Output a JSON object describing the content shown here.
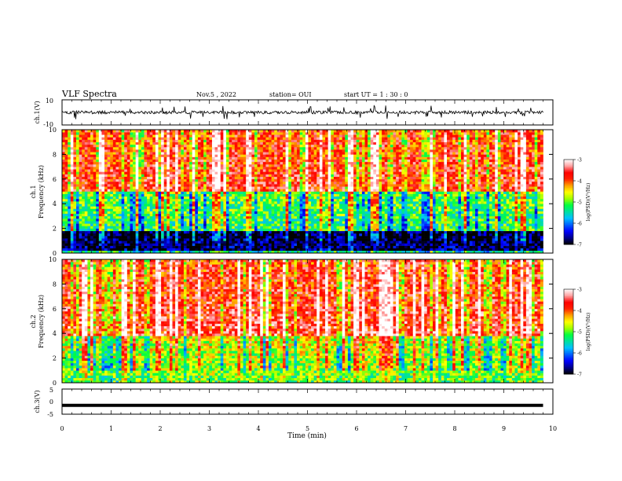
{
  "header": {
    "title": "VLF Spectra",
    "date": "Nov.5 , 2022",
    "station": "station= OUI",
    "start": "start UT = 1 : 30 : 0"
  },
  "chart_data": [
    {
      "type": "line",
      "id": "ch1-waveform",
      "ylabel": "ch.1(V)",
      "ylim": [
        -10,
        10
      ],
      "ytick_labels": [
        "10",
        "-10"
      ],
      "x_range_min": [
        0,
        9.8
      ],
      "description_values": {
        "baseline": 0,
        "typical_noise_amp": 1.2,
        "spike_amp": 5
      }
    },
    {
      "type": "heatmap",
      "id": "ch1-spectrogram",
      "ylabel_line1": "ch.1",
      "ylabel_line2": "Frequency (kHz)",
      "ylim": [
        0,
        10
      ],
      "ytick_labels": [
        "0",
        "2",
        "4",
        "6",
        "8",
        "10"
      ],
      "x_range_min": [
        0,
        9.8
      ],
      "colorbar": {
        "label": "log(PSD)(V²/Hz)",
        "range": [
          -7,
          -3
        ],
        "tick_labels": [
          "-3",
          "-4",
          "-5",
          "-6",
          "-7"
        ]
      },
      "profile": {
        "low_band_khz": [
          0.3,
          1.8
        ],
        "low_level": -6.8,
        "mid_level": -5.4,
        "high_level": -3.7,
        "transition_khz": 5.0
      }
    },
    {
      "type": "heatmap",
      "id": "ch2-spectrogram",
      "ylabel_line1": "ch.2",
      "ylabel_line2": "Frequency (kHz)",
      "ylim": [
        0,
        10
      ],
      "ytick_labels": [
        "0",
        "2",
        "4",
        "6",
        "8",
        "10"
      ],
      "x_range_min": [
        0,
        9.8
      ],
      "colorbar": {
        "label": "log(PSD)(V²/Hz)",
        "range": [
          -7,
          -3
        ],
        "tick_labels": [
          "-3",
          "-4",
          "-5",
          "-6",
          "-7"
        ]
      },
      "profile": {
        "low_level": -6.0,
        "mid_level": -5.0,
        "high_level": -3.6,
        "transition_khz": 3.8
      }
    },
    {
      "type": "line",
      "id": "ch3-waveform",
      "ylabel": "ch.3(V)",
      "ylim": [
        -5,
        5
      ],
      "ytick_labels": [
        "5",
        "0",
        "-5"
      ],
      "x_range_min": [
        0,
        9.8
      ],
      "values_const": -1.5
    }
  ],
  "xaxis": {
    "label": "Time (min)",
    "range": [
      0,
      10
    ],
    "tick_labels": [
      "0",
      "1",
      "2",
      "3",
      "4",
      "5",
      "6",
      "7",
      "8",
      "9",
      "10"
    ]
  },
  "colors": {
    "colormap": [
      "#000000",
      "#00008b",
      "#0000ff",
      "#0060ff",
      "#00c0ff",
      "#00e0a0",
      "#00ff40",
      "#a0ff00",
      "#ffff00",
      "#ffa000",
      "#ff2000",
      "#ff0000",
      "#ffa0a0",
      "#ffffff"
    ]
  }
}
